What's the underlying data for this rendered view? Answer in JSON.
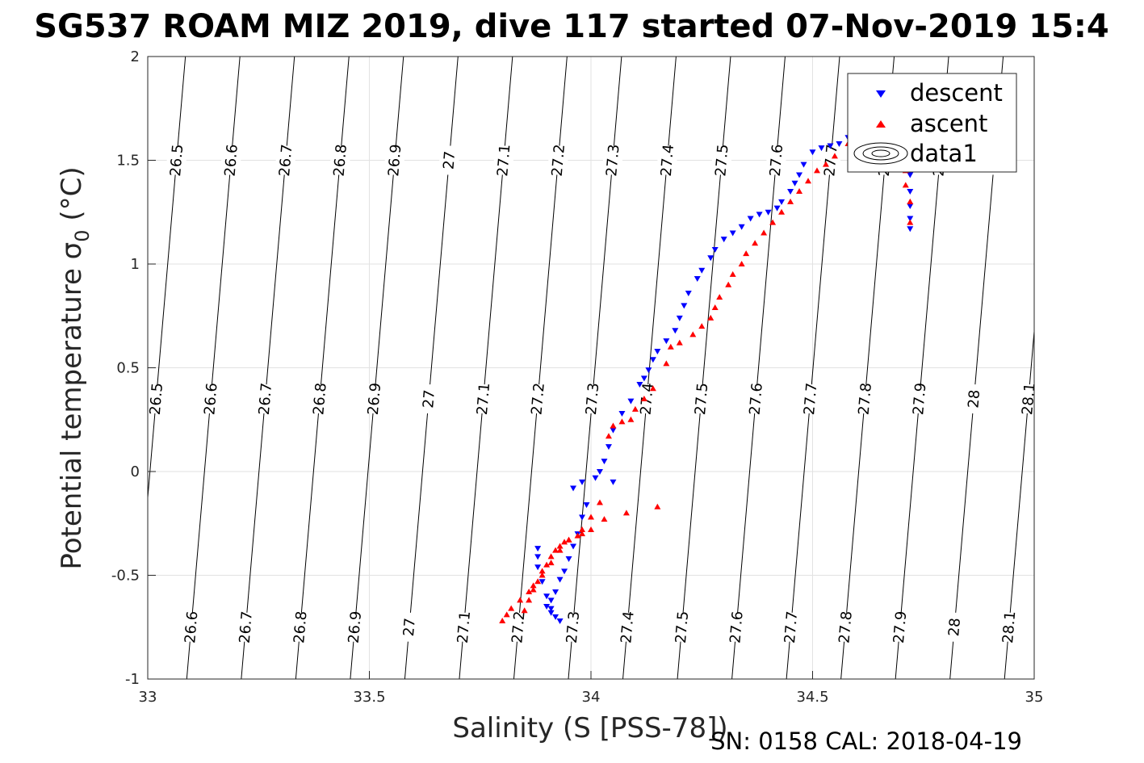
{
  "chart_data": {
    "type": "scatter",
    "title": "SG537 ROAM MIZ 2019, dive 117 started 07-Nov-2019 15:4",
    "xlabel": "Salinity (S [PSS-78])",
    "ylabel_main": "Potential temperature ",
    "ylabel_sigma": "σ",
    "ylabel_sub": "0",
    "ylabel_unit": " (°C)",
    "footnote": "SN: 0158  CAL: 2018-04-19",
    "xlim": [
      33,
      35
    ],
    "ylim": [
      -1,
      2
    ],
    "xticks": [
      33,
      33.5,
      34,
      34.5,
      35
    ],
    "xtick_labels": [
      "33",
      "33.5",
      "34",
      "34.5",
      "35"
    ],
    "yticks": [
      -1,
      -0.5,
      0,
      0.5,
      1,
      1.5,
      2
    ],
    "ytick_labels": [
      "-1",
      "-0.5",
      "0",
      "0.5",
      "1",
      "1.5",
      "2"
    ],
    "grid": true,
    "legend_position": "top-right",
    "legend": [
      {
        "name": "descent",
        "marker": "triangle-down",
        "color": "#0000ff"
      },
      {
        "name": "ascent",
        "marker": "triangle-up",
        "color": "#ff0000"
      },
      {
        "name": "data1",
        "marker": "contour",
        "color": "#000000"
      }
    ],
    "density_contours": {
      "levels": [
        "26.5",
        "26.6",
        "26.7",
        "26.8",
        "26.9",
        "27",
        "27.1",
        "27.2",
        "27.3",
        "27.4",
        "27.5",
        "27.6",
        "27.7",
        "27.8",
        "27.9",
        "28",
        "28.1"
      ],
      "sigma_start": 26.5,
      "sigma_step": 0.1,
      "slope_dS_per_degC": 0.04,
      "haline_step_per_0p1": 0.123,
      "s_at_minus1": [
        32.965,
        33.088,
        33.211,
        33.334,
        33.457,
        33.58,
        33.703,
        33.826,
        33.949,
        34.072,
        34.195,
        34.318,
        34.441,
        34.564,
        34.687,
        34.81,
        34.933
      ]
    },
    "series": [
      {
        "name": "descent",
        "color": "#0000ff",
        "marker": "triangle-down",
        "points": [
          [
            34.72,
            1.17
          ],
          [
            34.72,
            1.22
          ],
          [
            34.72,
            1.28
          ],
          [
            34.72,
            1.35
          ],
          [
            34.72,
            1.43
          ],
          [
            34.72,
            1.5
          ],
          [
            34.72,
            1.55
          ],
          [
            34.71,
            1.6
          ],
          [
            34.68,
            1.6
          ],
          [
            34.63,
            1.62
          ],
          [
            34.6,
            1.62
          ],
          [
            34.58,
            1.61
          ],
          [
            34.56,
            1.58
          ],
          [
            34.54,
            1.57
          ],
          [
            34.52,
            1.56
          ],
          [
            34.5,
            1.54
          ],
          [
            34.48,
            1.48
          ],
          [
            34.47,
            1.43
          ],
          [
            34.46,
            1.39
          ],
          [
            34.45,
            1.35
          ],
          [
            34.43,
            1.3
          ],
          [
            34.42,
            1.27
          ],
          [
            34.4,
            1.25
          ],
          [
            34.38,
            1.24
          ],
          [
            34.36,
            1.22
          ],
          [
            34.34,
            1.18
          ],
          [
            34.32,
            1.15
          ],
          [
            34.3,
            1.12
          ],
          [
            34.28,
            1.07
          ],
          [
            34.27,
            1.03
          ],
          [
            34.25,
            0.97
          ],
          [
            34.24,
            0.93
          ],
          [
            34.22,
            0.86
          ],
          [
            34.21,
            0.8
          ],
          [
            34.2,
            0.74
          ],
          [
            34.19,
            0.68
          ],
          [
            34.17,
            0.63
          ],
          [
            34.15,
            0.58
          ],
          [
            34.14,
            0.54
          ],
          [
            34.13,
            0.49
          ],
          [
            34.12,
            0.45
          ],
          [
            34.11,
            0.42
          ],
          [
            34.09,
            0.34
          ],
          [
            34.07,
            0.28
          ],
          [
            34.05,
            0.2
          ],
          [
            34.04,
            0.12
          ],
          [
            34.03,
            0.05
          ],
          [
            34.02,
            0.0
          ],
          [
            34.01,
            -0.03
          ],
          [
            33.98,
            -0.05
          ],
          [
            33.96,
            -0.08
          ],
          [
            34.05,
            -0.05
          ],
          [
            33.99,
            -0.16
          ],
          [
            33.98,
            -0.22
          ],
          [
            33.97,
            -0.3
          ],
          [
            33.96,
            -0.36
          ],
          [
            33.95,
            -0.42
          ],
          [
            33.94,
            -0.48
          ],
          [
            33.93,
            -0.52
          ],
          [
            33.92,
            -0.58
          ],
          [
            33.91,
            -0.62
          ],
          [
            33.9,
            -0.65
          ],
          [
            33.91,
            -0.68
          ],
          [
            33.92,
            -0.7
          ],
          [
            33.93,
            -0.72
          ],
          [
            33.91,
            -0.66
          ],
          [
            33.9,
            -0.6
          ],
          [
            33.89,
            -0.53
          ],
          [
            33.88,
            -0.46
          ],
          [
            33.88,
            -0.41
          ],
          [
            33.88,
            -0.37
          ]
        ]
      },
      {
        "name": "ascent",
        "color": "#ff0000",
        "marker": "triangle-up",
        "points": [
          [
            34.72,
            1.2
          ],
          [
            34.72,
            1.3
          ],
          [
            34.71,
            1.38
          ],
          [
            34.71,
            1.45
          ],
          [
            34.71,
            1.52
          ],
          [
            34.7,
            1.57
          ],
          [
            34.66,
            1.58
          ],
          [
            34.62,
            1.6
          ],
          [
            34.58,
            1.58
          ],
          [
            34.55,
            1.52
          ],
          [
            34.53,
            1.48
          ],
          [
            34.51,
            1.45
          ],
          [
            34.49,
            1.4
          ],
          [
            34.47,
            1.35
          ],
          [
            34.45,
            1.3
          ],
          [
            34.43,
            1.25
          ],
          [
            34.41,
            1.2
          ],
          [
            34.39,
            1.15
          ],
          [
            34.37,
            1.1
          ],
          [
            34.35,
            1.05
          ],
          [
            34.34,
            1.0
          ],
          [
            34.32,
            0.95
          ],
          [
            34.31,
            0.9
          ],
          [
            34.29,
            0.84
          ],
          [
            34.28,
            0.79
          ],
          [
            34.27,
            0.74
          ],
          [
            34.25,
            0.7
          ],
          [
            34.23,
            0.66
          ],
          [
            34.2,
            0.62
          ],
          [
            34.18,
            0.6
          ],
          [
            34.17,
            0.52
          ],
          [
            34.14,
            0.4
          ],
          [
            34.12,
            0.35
          ],
          [
            34.1,
            0.3
          ],
          [
            34.09,
            0.25
          ],
          [
            34.07,
            0.24
          ],
          [
            34.05,
            0.22
          ],
          [
            34.04,
            0.17
          ],
          [
            34.02,
            -0.15
          ],
          [
            34.0,
            -0.22
          ],
          [
            33.98,
            -0.28
          ],
          [
            33.95,
            -0.33
          ],
          [
            33.93,
            -0.38
          ],
          [
            33.91,
            -0.44
          ],
          [
            33.89,
            -0.5
          ],
          [
            33.87,
            -0.55
          ],
          [
            33.86,
            -0.58
          ],
          [
            33.84,
            -0.62
          ],
          [
            33.82,
            -0.66
          ],
          [
            33.81,
            -0.69
          ],
          [
            33.8,
            -0.72
          ],
          [
            33.85,
            -0.67
          ],
          [
            33.86,
            -0.62
          ],
          [
            33.87,
            -0.57
          ],
          [
            33.88,
            -0.53
          ],
          [
            33.89,
            -0.48
          ],
          [
            33.9,
            -0.45
          ],
          [
            33.91,
            -0.41
          ],
          [
            33.92,
            -0.38
          ],
          [
            33.93,
            -0.36
          ],
          [
            33.94,
            -0.34
          ],
          [
            33.95,
            -0.33
          ],
          [
            33.97,
            -0.31
          ],
          [
            33.98,
            -0.3
          ],
          [
            34.0,
            -0.28
          ],
          [
            34.03,
            -0.23
          ],
          [
            34.08,
            -0.2
          ],
          [
            34.15,
            -0.17
          ]
        ]
      }
    ]
  }
}
